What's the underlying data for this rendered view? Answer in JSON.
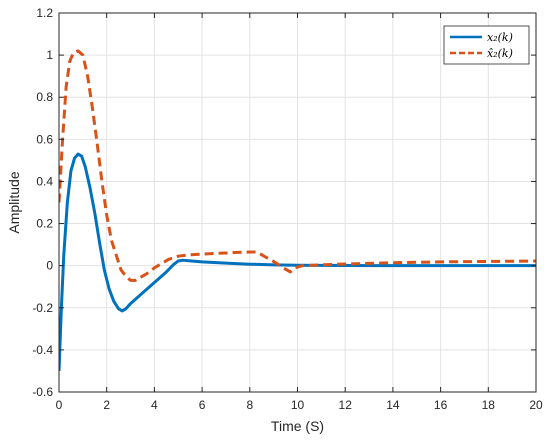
{
  "chart_data": {
    "type": "line",
    "title": "",
    "xlabel": "Time (S)",
    "ylabel": "Amplitude",
    "xlim": [
      0,
      20
    ],
    "ylim": [
      -0.6,
      1.2
    ],
    "xticks": [
      "0",
      "2",
      "4",
      "6",
      "8",
      "10",
      "12",
      "14",
      "16",
      "18",
      "20"
    ],
    "yticks": [
      "-0.6",
      "-0.4",
      "-0.2",
      "0",
      "0.2",
      "0.4",
      "0.6",
      "0.8",
      "1",
      "1.2"
    ],
    "grid": true,
    "legend_position": "top-right",
    "series": [
      {
        "name": "x₂(k)",
        "color": "#0072BD",
        "style": "solid",
        "points": [
          [
            0,
            -0.5
          ],
          [
            0.1,
            -0.2
          ],
          [
            0.2,
            0.05
          ],
          [
            0.35,
            0.3
          ],
          [
            0.5,
            0.45
          ],
          [
            0.65,
            0.51
          ],
          [
            0.8,
            0.53
          ],
          [
            0.95,
            0.52
          ],
          [
            1.1,
            0.47
          ],
          [
            1.3,
            0.37
          ],
          [
            1.5,
            0.25
          ],
          [
            1.7,
            0.11
          ],
          [
            1.9,
            -0.02
          ],
          [
            2.1,
            -0.11
          ],
          [
            2.3,
            -0.17
          ],
          [
            2.5,
            -0.205
          ],
          [
            2.65,
            -0.215
          ],
          [
            2.8,
            -0.205
          ],
          [
            3.0,
            -0.18
          ],
          [
            3.5,
            -0.13
          ],
          [
            4.0,
            -0.08
          ],
          [
            4.5,
            -0.03
          ],
          [
            4.8,
            0.005
          ],
          [
            5.0,
            0.022
          ],
          [
            5.2,
            0.026
          ],
          [
            5.5,
            0.023
          ],
          [
            6,
            0.018
          ],
          [
            7,
            0.012
          ],
          [
            8,
            0.007
          ],
          [
            9,
            0.004
          ],
          [
            10,
            0.002
          ],
          [
            12,
            0.001
          ],
          [
            15,
            0.0
          ],
          [
            20,
            0.0
          ]
        ]
      },
      {
        "name": "x̂₂(k)",
        "color": "#D95319",
        "style": "dashed",
        "points": [
          [
            0,
            0.3
          ],
          [
            0.15,
            0.6
          ],
          [
            0.3,
            0.85
          ],
          [
            0.45,
            0.97
          ],
          [
            0.6,
            1.01
          ],
          [
            0.8,
            1.02
          ],
          [
            1.0,
            1.0
          ],
          [
            1.2,
            0.9
          ],
          [
            1.4,
            0.75
          ],
          [
            1.6,
            0.58
          ],
          [
            1.8,
            0.4
          ],
          [
            2.0,
            0.24
          ],
          [
            2.2,
            0.12
          ],
          [
            2.4,
            0.05
          ],
          [
            2.6,
            -0.02
          ],
          [
            2.8,
            -0.05
          ],
          [
            3.0,
            -0.07
          ],
          [
            3.2,
            -0.07
          ],
          [
            3.5,
            -0.05
          ],
          [
            3.8,
            -0.03
          ],
          [
            4.0,
            -0.01
          ],
          [
            4.3,
            0.01
          ],
          [
            4.6,
            0.03
          ],
          [
            5.0,
            0.045
          ],
          [
            5.5,
            0.052
          ],
          [
            6,
            0.055
          ],
          [
            6.5,
            0.058
          ],
          [
            7,
            0.06
          ],
          [
            7.5,
            0.063
          ],
          [
            8,
            0.065
          ],
          [
            8.3,
            0.065
          ],
          [
            8.6,
            0.045
          ],
          [
            9.0,
            0.02
          ],
          [
            9.4,
            -0.01
          ],
          [
            9.7,
            -0.03
          ],
          [
            9.9,
            -0.01
          ],
          [
            10.2,
            0.0
          ],
          [
            11,
            0.004
          ],
          [
            12,
            0.008
          ],
          [
            13,
            0.011
          ],
          [
            14,
            0.014
          ],
          [
            15,
            0.016
          ],
          [
            16,
            0.018
          ],
          [
            17,
            0.019
          ],
          [
            18,
            0.02
          ],
          [
            19,
            0.021
          ],
          [
            20,
            0.022
          ]
        ]
      }
    ]
  }
}
